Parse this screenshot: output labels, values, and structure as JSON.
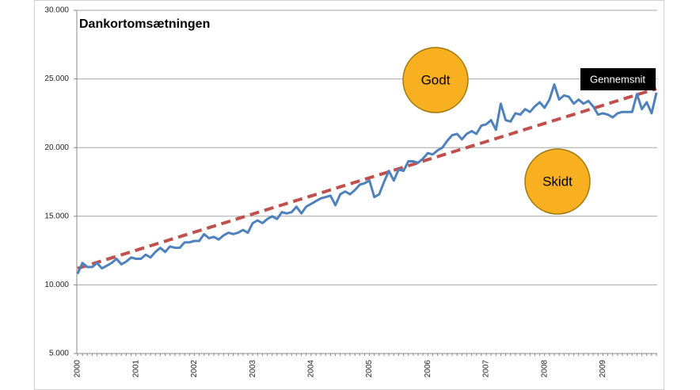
{
  "chart_data": {
    "type": "line",
    "title": "Dankortomsætningen",
    "categories": [
      "2000",
      null,
      null,
      null,
      null,
      null,
      null,
      null,
      null,
      null,
      null,
      null,
      "2001",
      null,
      null,
      null,
      null,
      null,
      null,
      null,
      null,
      null,
      null,
      null,
      "2002",
      null,
      null,
      null,
      null,
      null,
      null,
      null,
      null,
      null,
      null,
      null,
      "2003",
      null,
      null,
      null,
      null,
      null,
      null,
      null,
      null,
      null,
      null,
      null,
      "2004",
      null,
      null,
      null,
      null,
      null,
      null,
      null,
      null,
      null,
      null,
      null,
      "2005",
      null,
      null,
      null,
      null,
      null,
      null,
      null,
      null,
      null,
      null,
      null,
      "2006",
      null,
      null,
      null,
      null,
      null,
      null,
      null,
      null,
      null,
      null,
      null,
      "2007",
      null,
      null,
      null,
      null,
      null,
      null,
      null,
      null,
      null,
      null,
      null,
      "2008",
      null,
      null,
      null,
      null,
      null,
      null,
      null,
      null,
      null,
      null,
      null,
      "2009",
      null,
      null,
      null,
      null,
      null,
      null,
      null,
      null,
      null,
      null,
      null
    ],
    "series": [
      {
        "color": "#4f81bd",
        "values": [
          10800,
          11600,
          11300,
          11300,
          11600,
          11200,
          11400,
          11600,
          11900,
          11500,
          11700,
          12000,
          11900,
          11900,
          12200,
          12000,
          12400,
          12700,
          12400,
          12800,
          12700,
          12700,
          13100,
          13100,
          13200,
          13200,
          13700,
          13400,
          13500,
          13300,
          13600,
          13800,
          13700,
          13800,
          14000,
          13800,
          14500,
          14700,
          14500,
          14800,
          15000,
          14800,
          15300,
          15200,
          15300,
          15700,
          15200,
          15700,
          15900,
          16100,
          16300,
          16400,
          16500,
          15800,
          16600,
          16800,
          16600,
          16900,
          17300,
          17400,
          17600,
          16400,
          16600,
          17500,
          18300,
          17600,
          18400,
          18300,
          19000,
          19000,
          18900,
          19200,
          19600,
          19500,
          19800,
          20000,
          20500,
          20900,
          21000,
          20600,
          21000,
          21200,
          21000,
          21600,
          21700,
          22000,
          21300,
          23200,
          22000,
          21900,
          22500,
          22400,
          22800,
          22600,
          23000,
          23300,
          22900,
          23500,
          24600,
          23500,
          23800,
          23700,
          23200,
          23500,
          23200,
          23400,
          23000,
          22400,
          22500,
          22400,
          22200,
          22500,
          22600,
          22600,
          22600,
          23900,
          22800,
          23300,
          22500,
          24000
        ]
      },
      {
        "name": "Gennemsnit",
        "color": "#c0504d",
        "dashed": true,
        "values": [
          11200,
          11310,
          11420,
          11530,
          11640,
          11750,
          11860,
          11970,
          12080,
          12190,
          12300,
          12410,
          12520,
          12630,
          12740,
          12850,
          12960,
          13070,
          13180,
          13290,
          13400,
          13510,
          13620,
          13730,
          13840,
          13950,
          14060,
          14170,
          14280,
          14390,
          14500,
          14610,
          14720,
          14830,
          14940,
          15050,
          15160,
          15270,
          15380,
          15490,
          15600,
          15710,
          15820,
          15930,
          16040,
          16150,
          16260,
          16370,
          16480,
          16590,
          16700,
          16810,
          16920,
          17030,
          17140,
          17250,
          17360,
          17470,
          17580,
          17690,
          17800,
          17910,
          18020,
          18130,
          18240,
          18350,
          18460,
          18570,
          18680,
          18790,
          18900,
          19010,
          19120,
          19230,
          19340,
          19450,
          19560,
          19670,
          19780,
          19890,
          20000,
          20110,
          20220,
          20330,
          20440,
          20550,
          20660,
          20770,
          20880,
          20990,
          21100,
          21210,
          21320,
          21430,
          21540,
          21650,
          21760,
          21870,
          21980,
          22090,
          22200,
          22310,
          22420,
          22530,
          22640,
          22750,
          22860,
          22970,
          23080,
          23190,
          23300,
          23410,
          23520,
          23630,
          23740,
          23850,
          23960,
          24070,
          24180,
          24290
        ]
      }
    ],
    "ylim": [
      5000,
      30000
    ],
    "yticks": [
      {
        "value": 5000,
        "label": "5.000"
      },
      {
        "value": 10000,
        "label": "10.000"
      },
      {
        "value": 15000,
        "label": "15.000"
      },
      {
        "value": 20000,
        "label": "20.000"
      },
      {
        "value": 25000,
        "label": "25.000"
      },
      {
        "value": 30000,
        "label": "30.000"
      }
    ],
    "grid": true,
    "annotations": [
      "Godt",
      "Skidt"
    ]
  }
}
